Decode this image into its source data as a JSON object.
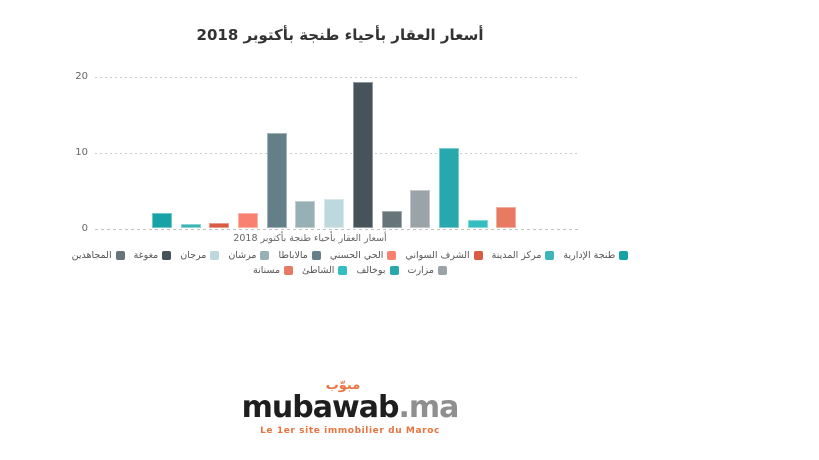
{
  "chart": {
    "title": "أسعار العقار بأحياء طنجة بأكتوبر 2018",
    "title_color": "#333333",
    "x_axis_title": "أسعار العقار بأحياء طنجة بأكتوبر 2018",
    "axis_label_color": "#666666",
    "gridline_color": "#cccccc"
  },
  "chart_data": {
    "type": "bar",
    "title": "أسعار العقار بأحياء طنجة بأكتوبر 2018",
    "xlabel": "أسعار العقار بأحياء طنجة بأكتوبر 2018",
    "ylabel": "",
    "ylim": [
      0,
      20
    ],
    "yticks": [
      0,
      10,
      20
    ],
    "grid": "horizontal-dashed",
    "legend_position": "bottom",
    "categories": [
      "طنجة الإدارية",
      "مركز المدينة",
      "الشرف السواني",
      "الحي الحسني",
      "مالاباطا",
      "مرشان",
      "مرجان",
      "مغوغة",
      "المجاهدين",
      "مزارت",
      "بوخالف",
      "الشاطئ",
      "مسنانة"
    ],
    "values": [
      2,
      0.5,
      0.6,
      2,
      12.5,
      3.6,
      3.8,
      19.2,
      2.2,
      5,
      10.5,
      1,
      2.8
    ],
    "colors": [
      "#17a2a6",
      "#3cb4b8",
      "#d85b42",
      "#f8816f",
      "#647f89",
      "#97b0b5",
      "#bed9dd",
      "#46535a",
      "#67747a",
      "#9aa3a7",
      "#27a8ad",
      "#35bec2",
      "#e87a61"
    ],
    "legend_row_counts": [
      9,
      4
    ]
  },
  "logo": {
    "arabic": "مبوّب",
    "brand": "mubawab",
    "tld": ".ma",
    "tagline": "Le 1er site immobilier du Maroc",
    "orange": "#e8743f",
    "dark": "#1e1e1e",
    "gray": "#8f8f8f"
  }
}
